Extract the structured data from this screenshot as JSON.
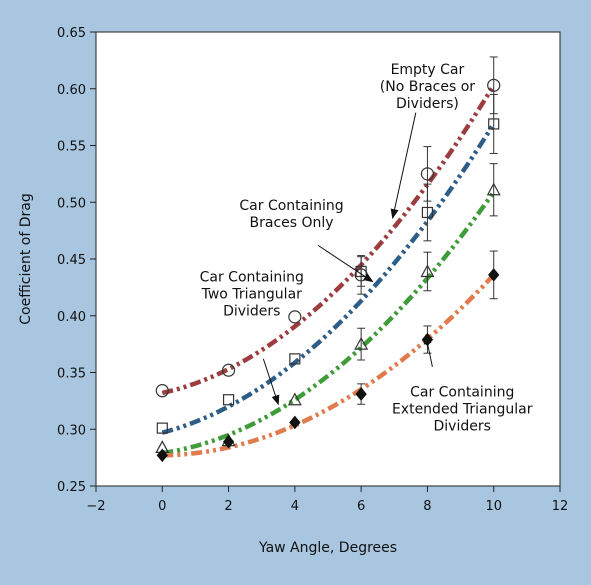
{
  "chart_data": {
    "type": "line",
    "xlabel": "Yaw Angle, Degrees",
    "ylabel": "Coefficient of Drag",
    "xlim": [
      -2,
      12
    ],
    "ylim": [
      0.25,
      0.65
    ],
    "xticks": [
      "-2",
      "0",
      "2",
      "4",
      "6",
      "8",
      "10",
      "12"
    ],
    "yticks": [
      "0.25",
      "0.30",
      "0.35",
      "0.40",
      "0.45",
      "0.50",
      "0.55",
      "0.60",
      "0.65"
    ],
    "x": [
      0,
      2,
      4,
      6,
      8,
      10
    ],
    "grid": false,
    "series": [
      {
        "color": "#9c3d3f",
        "marker": "circle",
        "values": [
          0.334,
          0.352,
          0.399,
          0.436,
          0.525,
          0.603
        ],
        "error": [
          0,
          0,
          0,
          0.017,
          0.024,
          0.025
        ],
        "fit": [
          0.332,
          0.353,
          0.389,
          0.441,
          0.513,
          0.603
        ]
      },
      {
        "color": "#2e5d87",
        "marker": "square",
        "values": [
          0.301,
          0.326,
          0.362,
          0.439,
          0.491,
          0.569
        ],
        "error": [
          0,
          0,
          0,
          0.013,
          0.025,
          0.026
        ],
        "fit": [
          0.297,
          0.32,
          0.357,
          0.411,
          0.481,
          0.569
        ]
      },
      {
        "color": "#3f9c38",
        "marker": "triangle",
        "values": [
          0.284,
          0.29,
          0.326,
          0.375,
          0.439,
          0.511
        ],
        "error": [
          0,
          0,
          0,
          0.014,
          0.017,
          0.023
        ],
        "fit": [
          0.279,
          0.295,
          0.325,
          0.371,
          0.432,
          0.509
        ]
      },
      {
        "color": "#e07b4d",
        "marker": "diamond",
        "values": [
          0.277,
          0.289,
          0.306,
          0.331,
          0.379,
          0.436
        ],
        "error": [
          0,
          0,
          0,
          0.009,
          0.012,
          0.021
        ],
        "fit": [
          0.277,
          0.284,
          0.302,
          0.33,
          0.375,
          0.436
        ]
      }
    ],
    "annotations": [
      {
        "lines": [
          "Empty Car",
          "(No Braces or",
          "Dividers)"
        ],
        "text_x": 8.0,
        "text_y": 0.613,
        "arrow_from": [
          7.65,
          0.579
        ],
        "arrow_to": [
          6.95,
          0.486
        ]
      },
      {
        "lines": [
          "Car Containing",
          "Braces Only"
        ],
        "text_x": 3.9,
        "text_y": 0.493,
        "arrow_from": [
          4.7,
          0.462
        ],
        "arrow_to": [
          6.35,
          0.43
        ]
      },
      {
        "lines": [
          "Car Containing",
          "Two Triangular",
          "Dividers"
        ],
        "text_x": 2.7,
        "text_y": 0.43,
        "arrow_from": [
          3.05,
          0.362
        ],
        "arrow_to": [
          3.5,
          0.322
        ]
      },
      {
        "lines": [
          "Car Containing",
          "Extended Triangular",
          "Dividers"
        ],
        "text_x": 9.05,
        "text_y": 0.329,
        "arrow_from": [
          8.15,
          0.355
        ],
        "arrow_to": [
          7.95,
          0.383
        ]
      }
    ]
  }
}
